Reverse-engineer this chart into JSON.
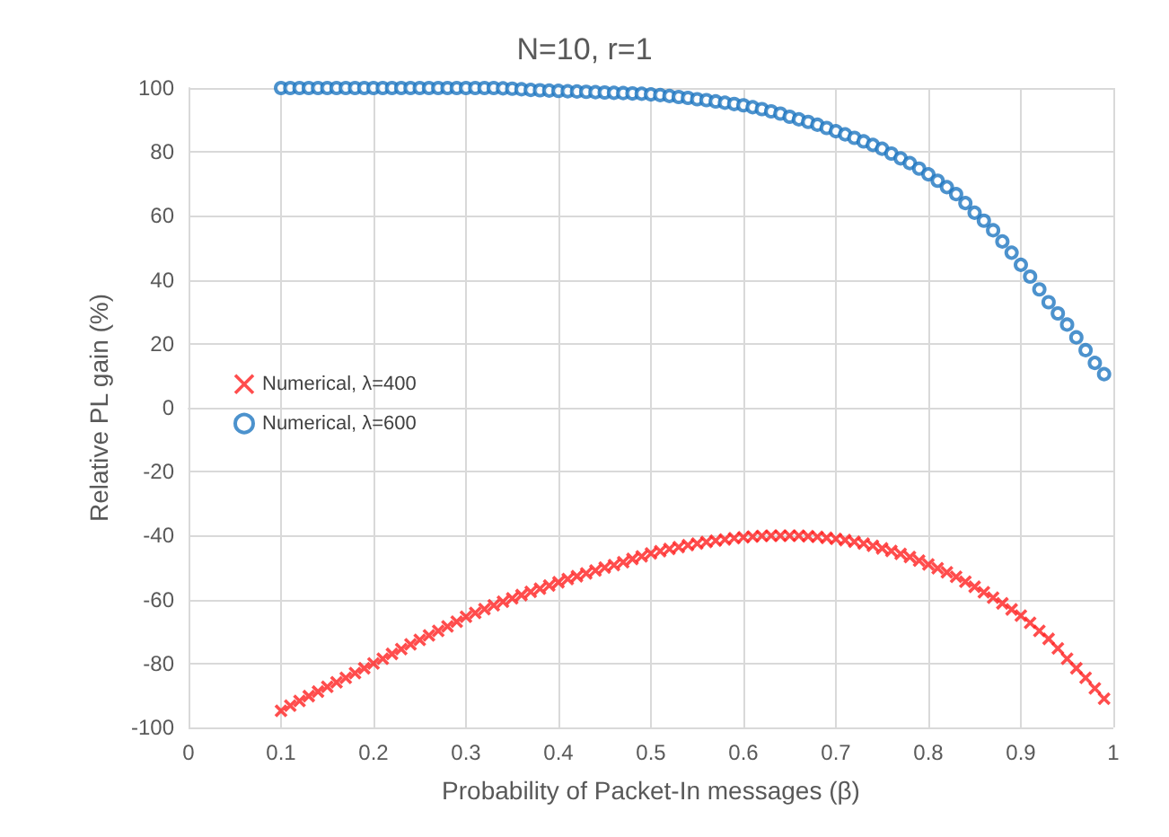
{
  "chart_data": {
    "type": "scatter",
    "title": "N=10, r=1",
    "xlabel": "Probability of Packet-In messages (β)",
    "ylabel": "Relative PL gain (%)",
    "x": [
      0.1,
      0.11,
      0.12,
      0.13,
      0.14,
      0.15,
      0.16,
      0.17,
      0.18,
      0.19,
      0.2,
      0.21,
      0.22,
      0.23,
      0.24,
      0.25,
      0.26,
      0.27,
      0.28,
      0.29,
      0.3,
      0.31,
      0.32,
      0.33,
      0.34,
      0.35,
      0.36,
      0.37,
      0.38,
      0.39,
      0.4,
      0.41,
      0.42,
      0.43,
      0.44,
      0.45,
      0.46,
      0.47,
      0.48,
      0.49,
      0.5,
      0.51,
      0.52,
      0.53,
      0.54,
      0.55,
      0.56,
      0.57,
      0.58,
      0.59,
      0.6,
      0.61,
      0.62,
      0.63,
      0.64,
      0.65,
      0.66,
      0.67,
      0.68,
      0.69,
      0.7,
      0.71,
      0.72,
      0.73,
      0.74,
      0.75,
      0.76,
      0.77,
      0.78,
      0.79,
      0.8,
      0.81,
      0.82,
      0.83,
      0.84,
      0.85,
      0.86,
      0.87,
      0.88,
      0.89,
      0.9,
      0.91,
      0.92,
      0.93,
      0.94,
      0.95,
      0.96,
      0.97,
      0.98,
      0.99
    ],
    "series": [
      {
        "name": "Numerical, λ=400",
        "color": "#ff2020",
        "marker": "cross",
        "values": [
          -94.8,
          -93.2,
          -91.7,
          -90.2,
          -88.8,
          -87.3,
          -85.9,
          -84.5,
          -83,
          -81.5,
          -80,
          -78.5,
          -77,
          -75.5,
          -74,
          -72.6,
          -71.2,
          -69.8,
          -68.4,
          -66.9,
          -65.4,
          -64.2,
          -63,
          -61.8,
          -60.7,
          -59.6,
          -58.6,
          -57.6,
          -56.6,
          -55.6,
          -54.6,
          -53.6,
          -52.7,
          -51.8,
          -50.9,
          -50,
          -49.2,
          -48.3,
          -47.3,
          -46.5,
          -45.6,
          -44.9,
          -44.2,
          -43.6,
          -43,
          -42.5,
          -42,
          -41.6,
          -41.2,
          -40.8,
          -40.5,
          -40.3,
          -40.1,
          -40,
          -40,
          -40,
          -40,
          -40.2,
          -40.4,
          -40.7,
          -41,
          -41.4,
          -41.9,
          -42.5,
          -43.2,
          -44,
          -44.8,
          -45.7,
          -46.7,
          -47.8,
          -49,
          -50.2,
          -51.5,
          -52.9,
          -54.4,
          -56,
          -57.7,
          -59.4,
          -61.2,
          -63.1,
          -65,
          -67.3,
          -69.8,
          -72.3,
          -75.3,
          -78.5,
          -81.5,
          -84.5,
          -87.8,
          -91
        ]
      },
      {
        "name": "Numerical, λ=600",
        "color": "#1f77c0",
        "marker": "circle",
        "values": [
          100,
          100,
          100,
          100,
          100,
          100,
          100,
          100,
          100,
          100,
          100,
          100,
          100,
          100,
          100,
          100,
          100,
          100,
          100,
          100,
          100,
          100,
          100,
          100,
          99.9,
          99.8,
          99.6,
          99.4,
          99.3,
          99.2,
          99.1,
          99,
          98.9,
          98.8,
          98.7,
          98.6,
          98.5,
          98.4,
          98.3,
          98.2,
          98,
          97.8,
          97.5,
          97.2,
          96.9,
          96.5,
          96.2,
          95.8,
          95.4,
          95,
          94.6,
          94,
          93.4,
          92.7,
          92,
          91,
          90.2,
          89.4,
          88.5,
          87.5,
          86.5,
          85.5,
          84.4,
          83.3,
          82.2,
          81,
          79.5,
          78,
          76.5,
          74.8,
          73,
          71,
          69,
          66.8,
          64,
          61,
          58.5,
          55.5,
          52,
          48.5,
          44.7,
          41,
          37,
          33,
          29.5,
          26,
          22,
          18,
          14,
          10.5
        ]
      }
    ],
    "xlim": [
      0,
      1
    ],
    "xticks": [
      0,
      0.1,
      0.2,
      0.3,
      0.4,
      0.5,
      0.6,
      0.7,
      0.8,
      0.9,
      1
    ],
    "ylim": [
      -100,
      100
    ],
    "yticks": [
      -100,
      -80,
      -60,
      -40,
      -20,
      0,
      20,
      40,
      60,
      80,
      100
    ],
    "grid": true,
    "legend": "center left"
  }
}
